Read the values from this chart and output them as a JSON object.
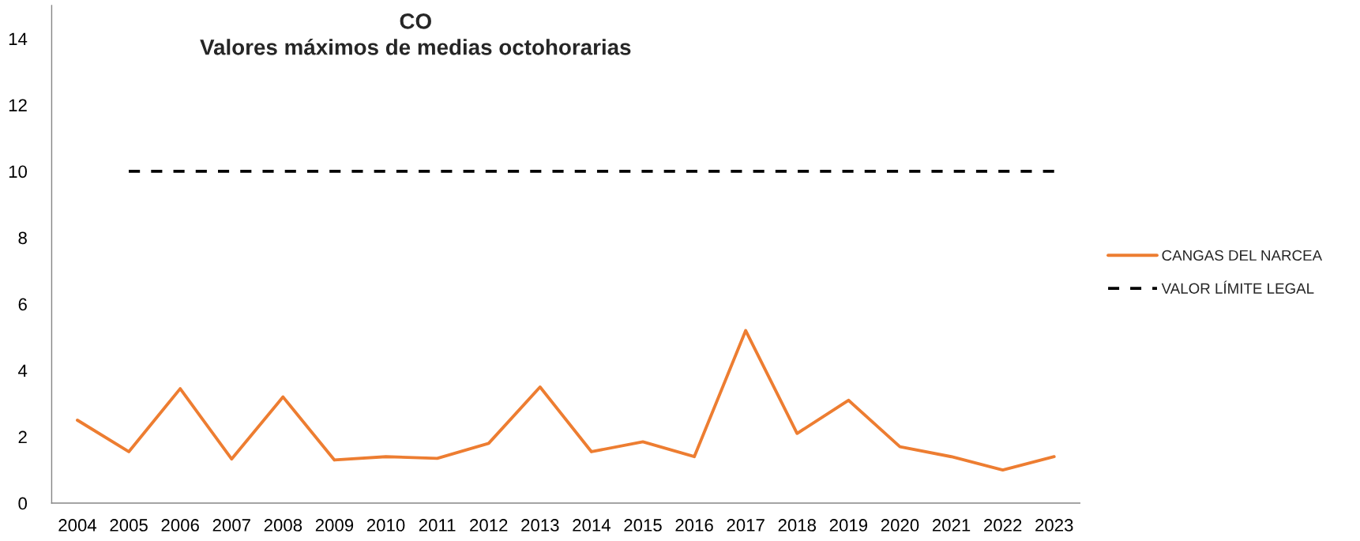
{
  "chart_data": {
    "type": "line",
    "title": "CO\nValores máximos de medias octohorarias",
    "categories": [
      "2004",
      "2005",
      "2006",
      "2007",
      "2008",
      "2009",
      "2010",
      "2011",
      "2012",
      "2013",
      "2014",
      "2015",
      "2016",
      "2017",
      "2018",
      "2019",
      "2020",
      "2021",
      "2022",
      "2023"
    ],
    "series": [
      {
        "name": "CANGAS DEL NARCEA",
        "color": "#ed7d31",
        "line_style": "solid",
        "values": [
          2.5,
          1.55,
          3.45,
          1.33,
          3.2,
          1.3,
          1.4,
          1.35,
          1.8,
          3.5,
          1.55,
          1.85,
          1.4,
          5.2,
          2.1,
          3.1,
          1.7,
          1.4,
          1.0,
          1.4
        ]
      },
      {
        "name": "VALOR LÍMITE LEGAL",
        "color": "#000000",
        "line_style": "dashed",
        "values": [
          null,
          10,
          10,
          10,
          10,
          10,
          10,
          10,
          10,
          10,
          10,
          10,
          10,
          10,
          10,
          10,
          10,
          10,
          10,
          10
        ]
      }
    ],
    "ylim": [
      0,
      15
    ],
    "yticks": [
      0,
      2,
      4,
      6,
      8,
      10,
      12,
      14
    ],
    "grid": false,
    "legend": "right"
  }
}
